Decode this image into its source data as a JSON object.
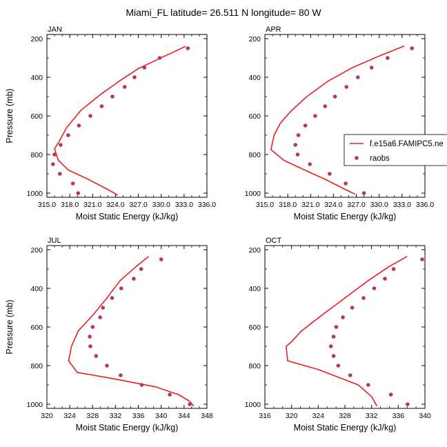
{
  "figure": {
    "title": "Miami_FL  latitude= 26.511 N longitude= 80 W",
    "legend": {
      "model_label": "f.e15a6.FAMIPC5.ne",
      "obs_label": "raobs",
      "placement": "right of APR panel",
      "model_color": "#ee1c1c",
      "obs_color": "#b5365f"
    }
  },
  "chart_data": [
    {
      "type": "line",
      "panel_label": "JAN",
      "xlabel": "Moist Static Energy (kJ/kg)",
      "ylabel": "Pressure (mb)",
      "xlim": [
        315,
        336
      ],
      "ylim": [
        1000,
        200
      ],
      "y_inverted": true,
      "xticks": [
        "315.0",
        "318.0",
        "321.0",
        "324.0",
        "327.0",
        "330.0",
        "333.0",
        "336.0"
      ],
      "yticks": [
        "200",
        "400",
        "600",
        "800",
        "1000"
      ],
      "series": [
        {
          "name": "f.e15a6.FAMIPC5.ne",
          "kind": "line",
          "points": [
            [
              333.2,
              240
            ],
            [
              330.5,
              290
            ],
            [
              327.0,
              355
            ],
            [
              324.5,
              420
            ],
            [
              322.0,
              490
            ],
            [
              319.5,
              570
            ],
            [
              317.6,
              660
            ],
            [
              316.5,
              740
            ],
            [
              316.0,
              770
            ],
            [
              316.5,
              830
            ],
            [
              317.8,
              880
            ],
            [
              320.5,
              930
            ],
            [
              322.7,
              975
            ],
            [
              324.3,
              1010
            ]
          ]
        },
        {
          "name": "raobs",
          "kind": "scatter",
          "points": [
            [
              333.5,
              250
            ],
            [
              329.8,
              300
            ],
            [
              327.8,
              350
            ],
            [
              326.5,
              400
            ],
            [
              325.2,
              450
            ],
            [
              323.6,
              500
            ],
            [
              322.2,
              550
            ],
            [
              320.7,
              600
            ],
            [
              319.2,
              650
            ],
            [
              317.8,
              700
            ],
            [
              316.8,
              750
            ],
            [
              316.0,
              800
            ],
            [
              315.8,
              850
            ],
            [
              316.7,
              900
            ],
            [
              318.4,
              950
            ],
            [
              319.1,
              1000
            ]
          ]
        }
      ]
    },
    {
      "type": "line",
      "panel_label": "APR",
      "xlabel": "Moist Static Energy (kJ/kg)",
      "ylabel": "",
      "xlim": [
        315,
        336
      ],
      "ylim": [
        1000,
        200
      ],
      "y_inverted": true,
      "xticks": [
        "315.0",
        "318.0",
        "321.0",
        "324.0",
        "327.0",
        "330.0",
        "333.0",
        "336.0"
      ],
      "yticks": [
        "200",
        "400",
        "600",
        "800",
        "1000"
      ],
      "series": [
        {
          "name": "f.e15a6.FAMIPC5.ne",
          "kind": "line",
          "points": [
            [
              333.3,
              238
            ],
            [
              330.0,
              290
            ],
            [
              326.5,
              350
            ],
            [
              323.3,
              420
            ],
            [
              320.5,
              500
            ],
            [
              318.3,
              580
            ],
            [
              317.0,
              640
            ],
            [
              316.2,
              700
            ],
            [
              315.8,
              775
            ],
            [
              317.5,
              830
            ],
            [
              320.2,
              880
            ],
            [
              323.0,
              930
            ],
            [
              325.5,
              980
            ],
            [
              326.8,
              1005
            ]
          ]
        },
        {
          "name": "raobs",
          "kind": "scatter",
          "points": [
            [
              334.3,
              250
            ],
            [
              331.1,
              300
            ],
            [
              329.0,
              350
            ],
            [
              327.2,
              400
            ],
            [
              325.7,
              450
            ],
            [
              324.2,
              500
            ],
            [
              322.9,
              550
            ],
            [
              321.6,
              600
            ],
            [
              320.3,
              650
            ],
            [
              319.4,
              700
            ],
            [
              319.0,
              750
            ],
            [
              319.3,
              800
            ],
            [
              320.9,
              850
            ],
            [
              323.5,
              900
            ],
            [
              325.6,
              950
            ],
            [
              328.0,
              1000
            ]
          ]
        }
      ]
    },
    {
      "type": "line",
      "panel_label": "JUL",
      "xlabel": "Moist Static Energy (kJ/kg)",
      "ylabel": "Pressure (mb)",
      "xlim": [
        320,
        348
      ],
      "ylim": [
        1000,
        200
      ],
      "y_inverted": true,
      "xticks": [
        "320",
        "324",
        "328",
        "332",
        "336",
        "340",
        "344",
        "348"
      ],
      "yticks": [
        "200",
        "400",
        "600",
        "800",
        "1000"
      ],
      "series": [
        {
          "name": "f.e15a6.FAMIPC5.ne",
          "kind": "line",
          "points": [
            [
              337.8,
              235
            ],
            [
              335.5,
              290
            ],
            [
              332.8,
              360
            ],
            [
              330.5,
              450
            ],
            [
              328.0,
              540
            ],
            [
              325.5,
              620
            ],
            [
              324.3,
              700
            ],
            [
              323.8,
              775
            ],
            [
              325.3,
              835
            ],
            [
              332.0,
              870
            ],
            [
              339.0,
              910
            ],
            [
              343.0,
              950
            ],
            [
              345.0,
              985
            ],
            [
              345.7,
              1010
            ]
          ]
        },
        {
          "name": "raobs",
          "kind": "scatter",
          "points": [
            [
              340.0,
              250
            ],
            [
              336.5,
              300
            ],
            [
              335.2,
              350
            ],
            [
              333.0,
              400
            ],
            [
              331.4,
              450
            ],
            [
              329.8,
              500
            ],
            [
              329.3,
              550
            ],
            [
              328.0,
              600
            ],
            [
              327.5,
              650
            ],
            [
              327.6,
              700
            ],
            [
              328.6,
              750
            ],
            [
              330.5,
              800
            ],
            [
              332.9,
              850
            ],
            [
              336.6,
              900
            ],
            [
              341.5,
              950
            ],
            [
              345.0,
              1000
            ]
          ]
        }
      ]
    },
    {
      "type": "line",
      "panel_label": "OCT",
      "xlabel": "Moist Static Energy (kJ/kg)",
      "ylabel": "",
      "xlim": [
        316,
        340
      ],
      "ylim": [
        1000,
        200
      ],
      "y_inverted": true,
      "xticks": [
        "316",
        "320",
        "324",
        "328",
        "332",
        "336",
        "340"
      ],
      "yticks": [
        "200",
        "400",
        "600",
        "800",
        "1000"
      ],
      "series": [
        {
          "name": "f.e15a6.FAMIPC5.ne",
          "kind": "line",
          "points": [
            [
              337.3,
              235
            ],
            [
              334.5,
              290
            ],
            [
              331.5,
              360
            ],
            [
              328.0,
              450
            ],
            [
              324.5,
              540
            ],
            [
              321.5,
              620
            ],
            [
              319.9,
              680
            ],
            [
              319.2,
              700
            ],
            [
              319.4,
              775
            ],
            [
              324.0,
              820
            ],
            [
              327.0,
              860
            ],
            [
              330.0,
              900
            ],
            [
              332.0,
              960
            ],
            [
              332.8,
              1010
            ]
          ]
        },
        {
          "name": "raobs",
          "kind": "scatter",
          "points": [
            [
              339.6,
              250
            ],
            [
              335.3,
              300
            ],
            [
              334.0,
              350
            ],
            [
              332.4,
              400
            ],
            [
              330.8,
              450
            ],
            [
              329.1,
              500
            ],
            [
              327.7,
              550
            ],
            [
              326.7,
              600
            ],
            [
              326.3,
              650
            ],
            [
              325.9,
              700
            ],
            [
              326.3,
              750
            ],
            [
              327.0,
              800
            ],
            [
              328.8,
              850
            ],
            [
              331.5,
              900
            ],
            [
              334.9,
              950
            ],
            [
              337.4,
              1000
            ]
          ]
        }
      ]
    }
  ]
}
